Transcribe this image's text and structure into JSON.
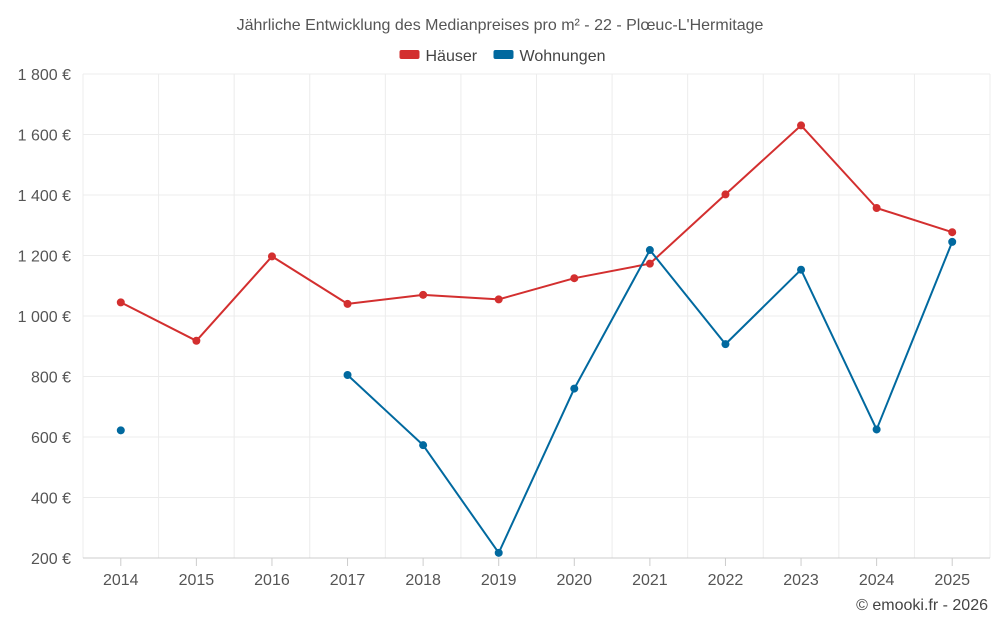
{
  "chart_data": {
    "type": "line",
    "title": "Jährliche Entwicklung des Medianpreises pro m² - 22 - Plœuc-L'Hermitage",
    "categories": [
      "2014",
      "2015",
      "2016",
      "2017",
      "2018",
      "2019",
      "2020",
      "2021",
      "2022",
      "2023",
      "2024",
      "2025"
    ],
    "ylim": [
      200,
      1800
    ],
    "yticks": [
      200,
      400,
      600,
      800,
      1000,
      1200,
      1400,
      1600,
      1800
    ],
    "ytick_labels": [
      "200 €",
      "400 €",
      "600 €",
      "800 €",
      "1 000 €",
      "1 200 €",
      "1 400 €",
      "1 600 €",
      "1 800 €"
    ],
    "grid": true,
    "legend_position": "top-center",
    "series": [
      {
        "name": "Häuser",
        "color": "#d32f2f",
        "values": [
          1045,
          918,
          1197,
          1040,
          1070,
          1055,
          1125,
          1173,
          1402,
          1630,
          1357,
          1277
        ]
      },
      {
        "name": "Wohnungen",
        "color": "#01699f",
        "values": [
          622,
          null,
          null,
          805,
          573,
          217,
          760,
          1218,
          907,
          1153,
          625,
          1245
        ]
      }
    ]
  },
  "credit": "© emooki.fr - 2026"
}
